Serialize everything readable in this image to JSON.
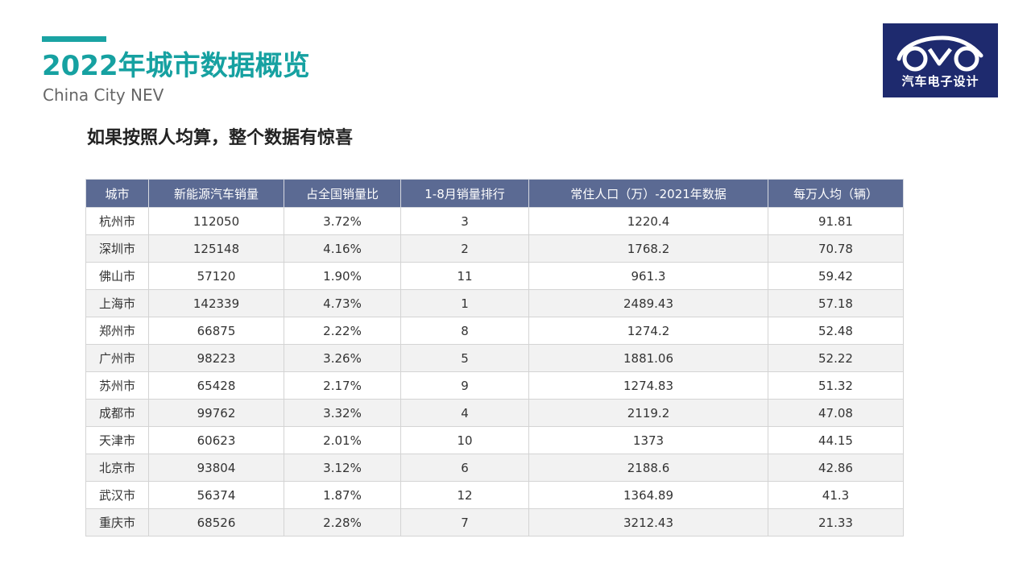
{
  "header": {
    "title": "2022年城市数据概览",
    "subtitle": "China City NEV",
    "accent_color": "#1aa3a3"
  },
  "logo": {
    "text": "汽车电子设计",
    "icon": "car-outline-icon",
    "background": "#1e2a6e"
  },
  "headline": "如果按照人均算，整个数据有惊喜",
  "table": {
    "header_color": "#5b6a93",
    "columns": [
      "城市",
      "新能源汽车销量",
      "占全国销量比",
      "1-8月销量排行",
      "常住人口（万）-2021年数据",
      "每万人均（辆）"
    ],
    "rows": [
      [
        "杭州市",
        "112050",
        "3.72%",
        "3",
        "1220.4",
        "91.81"
      ],
      [
        "深圳市",
        "125148",
        "4.16%",
        "2",
        "1768.2",
        "70.78"
      ],
      [
        "佛山市",
        "57120",
        "1.90%",
        "11",
        "961.3",
        "59.42"
      ],
      [
        "上海市",
        "142339",
        "4.73%",
        "1",
        "2489.43",
        "57.18"
      ],
      [
        "郑州市",
        "66875",
        "2.22%",
        "8",
        "1274.2",
        "52.48"
      ],
      [
        "广州市",
        "98223",
        "3.26%",
        "5",
        "1881.06",
        "52.22"
      ],
      [
        "苏州市",
        "65428",
        "2.17%",
        "9",
        "1274.83",
        "51.32"
      ],
      [
        "成都市",
        "99762",
        "3.32%",
        "4",
        "2119.2",
        "47.08"
      ],
      [
        "天津市",
        "60623",
        "2.01%",
        "10",
        "1373",
        "44.15"
      ],
      [
        "北京市",
        "93804",
        "3.12%",
        "6",
        "2188.6",
        "42.86"
      ],
      [
        "武汉市",
        "56374",
        "1.87%",
        "12",
        "1364.89",
        "41.3"
      ],
      [
        "重庆市",
        "68526",
        "2.28%",
        "7",
        "3212.43",
        "21.33"
      ]
    ]
  }
}
